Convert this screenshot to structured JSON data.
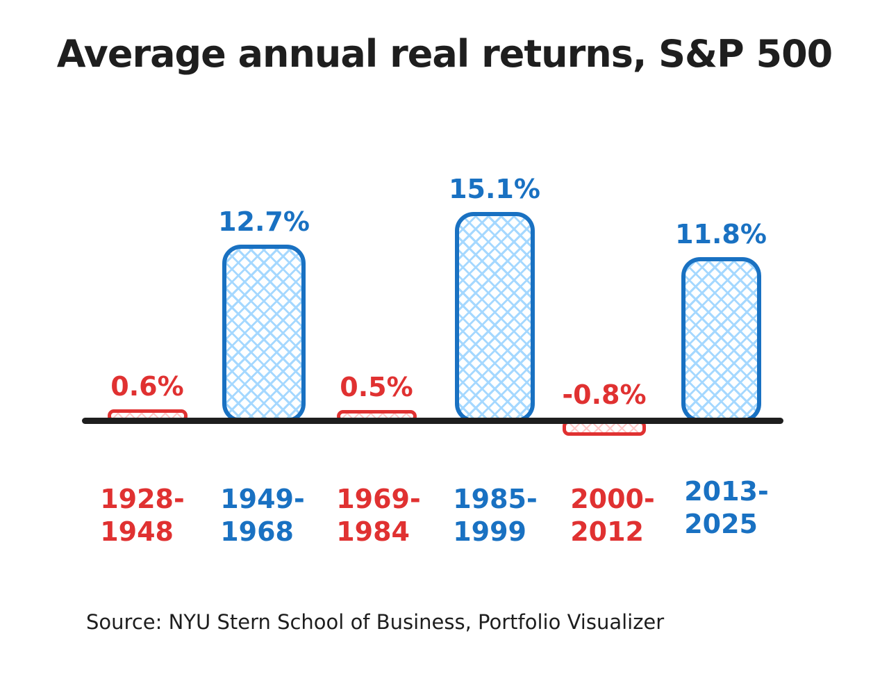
{
  "title": "Average annual real returns, S&P 500",
  "source": "Source: NYU Stern School of Business, Portfolio Visualizer",
  "colors": {
    "blue": "#1971c2",
    "blue_fill": "#a5d8ff",
    "red": "#e03131",
    "red_fill": "#ffc9c9",
    "axis": "#1e1e1e",
    "background": "#ffffff"
  },
  "chart_data": {
    "type": "bar",
    "title": "Average annual real returns, S&P 500",
    "categories": [
      "1928-1948",
      "1949-1968",
      "1969-1984",
      "1985-1999",
      "2000-2012",
      "2013-2025"
    ],
    "category_lines": [
      [
        "1928-",
        "1948"
      ],
      [
        "1949-",
        "1968"
      ],
      [
        "1969-",
        "1984"
      ],
      [
        "1985-",
        "1999"
      ],
      [
        "2000-",
        "2012"
      ],
      [
        "2013-",
        "2025"
      ]
    ],
    "values": [
      0.6,
      12.7,
      0.5,
      15.1,
      -0.8,
      11.8
    ],
    "value_labels": [
      "0.6%",
      "12.7%",
      "0.5%",
      "15.1%",
      "-0.8%",
      "11.8%"
    ],
    "bar_colors": [
      "red",
      "blue",
      "red",
      "blue",
      "red",
      "blue"
    ],
    "xlabel": "",
    "ylabel": "",
    "ylim": [
      -2,
      16
    ],
    "grid": false,
    "legend": "none",
    "baseline": 0,
    "source_note": "Source: NYU Stern School of Business, Portfolio Visualizer"
  }
}
